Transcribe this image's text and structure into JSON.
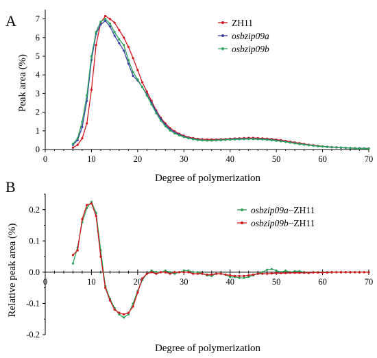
{
  "colors": {
    "ZH11": "#d0141b",
    "osbzip09a": "#3b3fa8",
    "osbzip09b": "#2aa25a",
    "axis": "#000000"
  },
  "chart_data": [
    {
      "panel": "A",
      "type": "line",
      "xlabel": "Degree of polymerization",
      "ylabel": "Peak area (%)",
      "xlim": [
        0,
        70
      ],
      "ylim": [
        0,
        7.5
      ],
      "xticks": [
        0,
        10,
        20,
        30,
        40,
        50,
        60,
        70
      ],
      "yticks": [
        0,
        1,
        2,
        3,
        4,
        5,
        6,
        7
      ],
      "grid": false,
      "legend": "top-right",
      "x": [
        6,
        7,
        8,
        9,
        10,
        11,
        12,
        13,
        14,
        15,
        16,
        17,
        18,
        19,
        20,
        21,
        22,
        23,
        24,
        25,
        26,
        27,
        28,
        29,
        30,
        31,
        32,
        33,
        34,
        35,
        36,
        37,
        38,
        39,
        40,
        41,
        42,
        43,
        44,
        45,
        46,
        47,
        48,
        49,
        50,
        51,
        52,
        53,
        54,
        55,
        56,
        57,
        58,
        59,
        60,
        61,
        62,
        63,
        64,
        65,
        66,
        67,
        68,
        69,
        70
      ],
      "series": [
        {
          "name": "ZH11",
          "color_key": "ZH11",
          "values": [
            0.1,
            0.25,
            0.6,
            1.4,
            3.2,
            5.6,
            6.8,
            7.15,
            7.0,
            6.8,
            6.4,
            6.0,
            5.5,
            4.9,
            4.25,
            3.6,
            3.1,
            2.6,
            2.1,
            1.7,
            1.4,
            1.15,
            0.98,
            0.84,
            0.74,
            0.66,
            0.61,
            0.57,
            0.55,
            0.54,
            0.54,
            0.54,
            0.55,
            0.56,
            0.58,
            0.59,
            0.6,
            0.61,
            0.62,
            0.62,
            0.61,
            0.6,
            0.58,
            0.56,
            0.53,
            0.5,
            0.46,
            0.42,
            0.38,
            0.34,
            0.3,
            0.26,
            0.23,
            0.2,
            0.17,
            0.15,
            0.13,
            0.12,
            0.1,
            0.09,
            0.08,
            0.07,
            0.07,
            0.06,
            0.06
          ]
        },
        {
          "name": "osbzip09a",
          "color_key": "osbzip09a",
          "values": [
            0.25,
            0.5,
            1.2,
            2.6,
            4.8,
            6.2,
            6.7,
            6.9,
            6.6,
            6.1,
            5.7,
            5.3,
            4.6,
            3.95,
            3.7,
            3.35,
            2.95,
            2.5,
            2.05,
            1.65,
            1.32,
            1.08,
            0.92,
            0.8,
            0.7,
            0.62,
            0.57,
            0.53,
            0.5,
            0.49,
            0.49,
            0.5,
            0.51,
            0.53,
            0.55,
            0.56,
            0.57,
            0.58,
            0.58,
            0.58,
            0.57,
            0.56,
            0.54,
            0.52,
            0.49,
            0.46,
            0.42,
            0.38,
            0.34,
            0.3,
            0.27,
            0.24,
            0.21,
            0.18,
            0.16,
            0.14,
            0.12,
            0.11,
            0.1,
            0.09,
            0.08,
            0.07,
            0.06,
            0.06,
            0.05
          ]
        },
        {
          "name": "osbzip09b",
          "color_key": "osbzip09b",
          "values": [
            0.3,
            0.6,
            1.5,
            2.9,
            5.0,
            6.3,
            6.85,
            7.0,
            6.75,
            6.3,
            5.9,
            5.6,
            4.8,
            4.15,
            3.75,
            3.35,
            2.9,
            2.42,
            1.95,
            1.55,
            1.25,
            1.02,
            0.87,
            0.76,
            0.67,
            0.6,
            0.55,
            0.51,
            0.49,
            0.48,
            0.48,
            0.49,
            0.5,
            0.52,
            0.53,
            0.54,
            0.55,
            0.56,
            0.56,
            0.56,
            0.55,
            0.54,
            0.52,
            0.5,
            0.47,
            0.44,
            0.41,
            0.37,
            0.33,
            0.29,
            0.26,
            0.23,
            0.2,
            0.18,
            0.16,
            0.14,
            0.12,
            0.11,
            0.1,
            0.09,
            0.08,
            0.07,
            0.06,
            0.06,
            0.05
          ]
        }
      ]
    },
    {
      "panel": "B",
      "type": "line",
      "xlabel": "Degree of polymerization",
      "ylabel": "Relative peak area (%)",
      "xlim": [
        0,
        70
      ],
      "ylim": [
        -0.2,
        0.25
      ],
      "xticks": [
        0,
        10,
        20,
        30,
        40,
        50,
        60,
        70
      ],
      "yticks": [
        -0.2,
        -0.1,
        0.0,
        0.1,
        0.2
      ],
      "ytick_labels": [
        "-0.2",
        "-0.1",
        "0.0",
        "0.1",
        "0.2"
      ],
      "grid": false,
      "legend": "top-right",
      "x": [
        6,
        7,
        8,
        9,
        10,
        11,
        12,
        13,
        14,
        15,
        16,
        17,
        18,
        19,
        20,
        21,
        22,
        23,
        24,
        25,
        26,
        27,
        28,
        29,
        30,
        31,
        32,
        33,
        34,
        35,
        36,
        37,
        38,
        39,
        40,
        41,
        42,
        43,
        44,
        45,
        46,
        47,
        48,
        49,
        50,
        51,
        52,
        53,
        54,
        55,
        56,
        57,
        58,
        59,
        60,
        61,
        62,
        63,
        64,
        65,
        66,
        67,
        68,
        69,
        70
      ],
      "series": [
        {
          "name": "osbzip09a−ZH11",
          "color_key": "osbzip09b",
          "values": [
            0.028,
            0.08,
            0.16,
            0.205,
            0.225,
            0.19,
            0.07,
            -0.045,
            -0.085,
            -0.115,
            -0.135,
            -0.145,
            -0.135,
            -0.1,
            -0.06,
            -0.025,
            -0.005,
            0.005,
            0.0,
            0.0,
            0.005,
            0.0,
            -0.005,
            0.0,
            0.005,
            0.005,
            0.0,
            0.0,
            -0.005,
            -0.01,
            -0.012,
            -0.005,
            -0.005,
            -0.008,
            -0.015,
            -0.015,
            -0.018,
            -0.018,
            -0.015,
            -0.01,
            -0.005,
            0.0,
            0.008,
            0.01,
            0.005,
            0.0,
            0.005,
            0.0,
            0.003,
            0.003,
            0.0,
            -0.003,
            0.0,
            0.0,
            0.0,
            0.0,
            0.0,
            0.0,
            0.0,
            0.0,
            0.0,
            0.0,
            0.0,
            0.0,
            0.0
          ]
        },
        {
          "name": "osbzip09b−ZH11",
          "color_key": "ZH11",
          "values": [
            0.055,
            0.07,
            0.17,
            0.215,
            0.22,
            0.18,
            0.05,
            -0.05,
            -0.09,
            -0.12,
            -0.13,
            -0.135,
            -0.13,
            -0.11,
            -0.065,
            -0.02,
            -0.005,
            0.0,
            -0.005,
            0.0,
            0.0,
            -0.005,
            0.0,
            0.0,
            0.0,
            0.0,
            -0.005,
            -0.005,
            -0.005,
            -0.008,
            -0.008,
            -0.005,
            -0.005,
            -0.008,
            -0.01,
            -0.012,
            -0.012,
            -0.012,
            -0.01,
            -0.008,
            -0.005,
            -0.005,
            -0.005,
            -0.004,
            -0.003,
            -0.003,
            -0.003,
            -0.002,
            -0.002,
            -0.002,
            -0.002,
            -0.002,
            -0.001,
            -0.001,
            -0.001,
            -0.001,
            0.0,
            0.0,
            0.0,
            0.0,
            0.0,
            0.0,
            0.0,
            0.0,
            0.0
          ]
        }
      ]
    }
  ]
}
